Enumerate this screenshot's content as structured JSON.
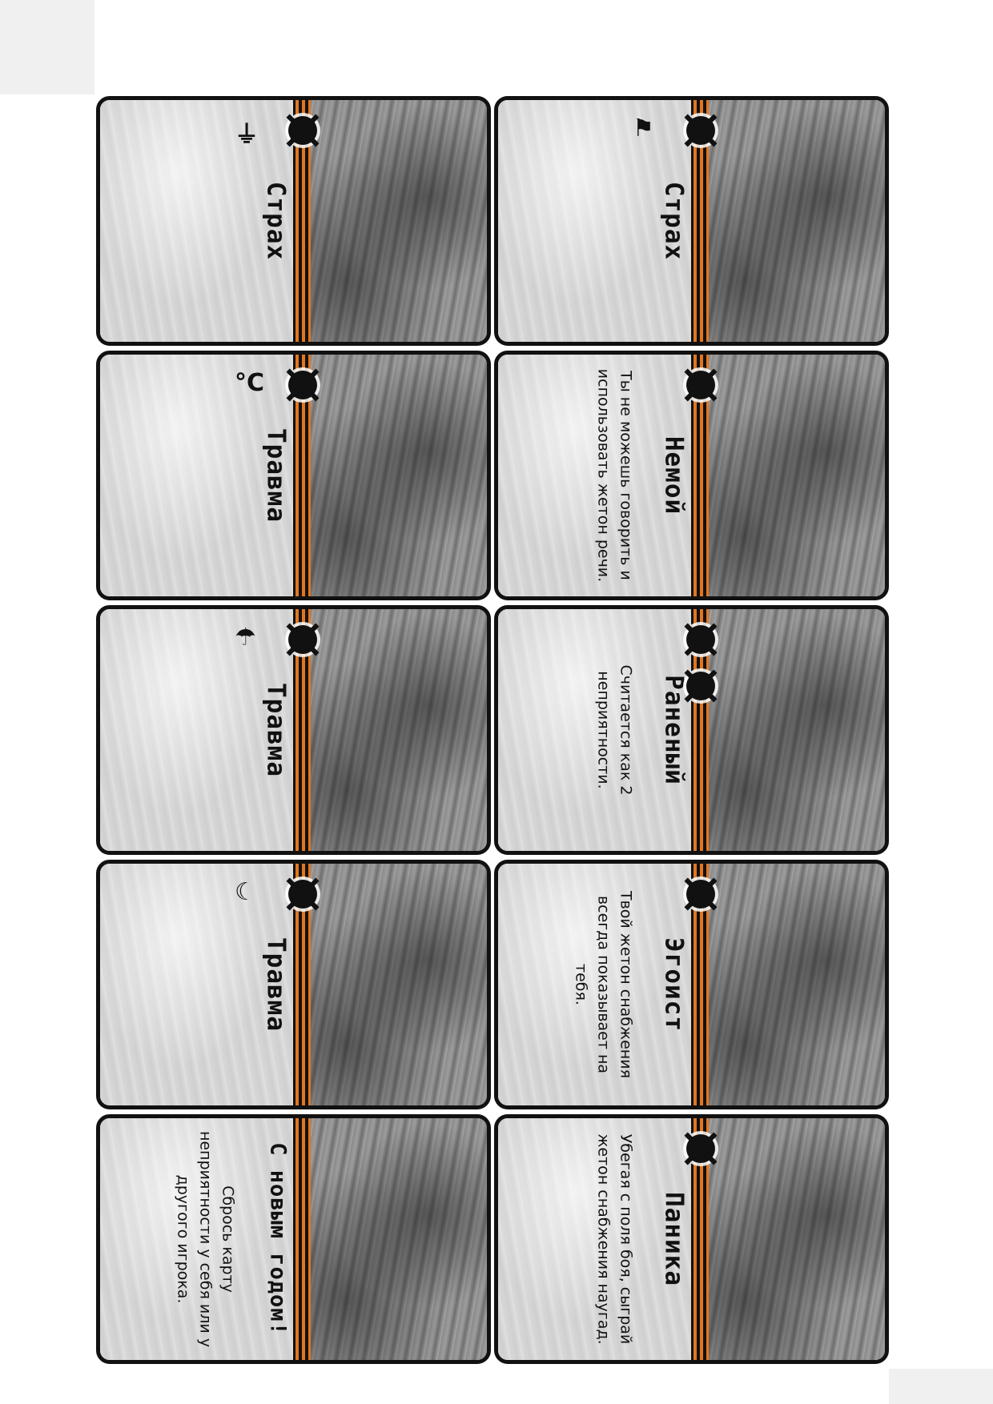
{
  "cards": [
    {
      "id": "c1",
      "title": "Страх",
      "text": "",
      "icon": "thermometer-icon",
      "icon_glyph": "⏚"
    },
    {
      "id": "c2",
      "title": "Травма",
      "text": "",
      "icon": "temperature-icon",
      "icon_glyph": "°C"
    },
    {
      "id": "c3",
      "title": "Травма",
      "text": "",
      "icon": "rain-icon",
      "icon_glyph": "☂"
    },
    {
      "id": "c4",
      "title": "Травма",
      "text": "",
      "icon": "moon-icon",
      "icon_glyph": "☾"
    },
    {
      "id": "c5",
      "title": "С новым годом!",
      "text": "Сбрось карту неприятности у себя или у другого игрока.",
      "icon": "",
      "icon_glyph": ""
    },
    {
      "id": "c6",
      "title": "Страх",
      "text": "",
      "icon": "flag-icon",
      "icon_glyph": "⚑"
    },
    {
      "id": "c7",
      "title": "Немой",
      "text": "Ты не можешь говорить и использовать жетон речи.",
      "icon": "",
      "icon_glyph": ""
    },
    {
      "id": "c8",
      "title": "Раненый",
      "text": "Считается как 2 неприятности.",
      "icon": "",
      "icon_glyph": ""
    },
    {
      "id": "c9",
      "title": "Эгоист",
      "text": "Твой жетон снабжения всегда показывает на тебя.",
      "icon": "",
      "icon_glyph": ""
    },
    {
      "id": "c10",
      "title": "Паника",
      "text": "Убегая с поля боя, сыграй жетон снабжения наугад.",
      "icon": "",
      "icon_glyph": ""
    }
  ]
}
